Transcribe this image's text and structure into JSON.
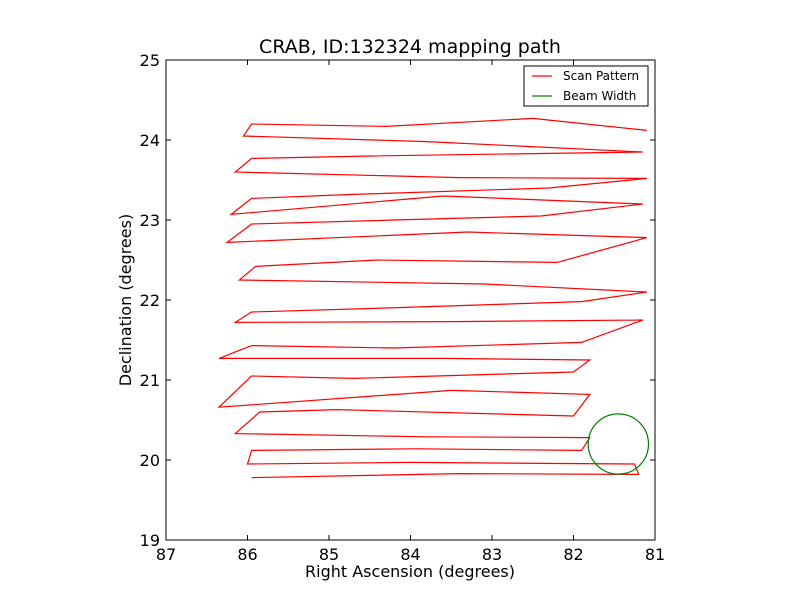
{
  "chart_data": {
    "type": "line",
    "title": "CRAB, ID:132324 mapping path",
    "xlabel": "Right Ascension (degrees)",
    "ylabel": "Declination (degrees)",
    "xlim": [
      87,
      81
    ],
    "ylim": [
      19,
      25
    ],
    "x_reversed": true,
    "xticks": [
      87,
      86,
      85,
      84,
      83,
      82,
      81
    ],
    "yticks": [
      19,
      20,
      21,
      22,
      23,
      24,
      25
    ],
    "grid": false,
    "legend": {
      "placement": "top-right",
      "entries": [
        "Scan Pattern",
        "Beam Width"
      ]
    },
    "series": [
      {
        "name": "Scan Pattern",
        "color": "#ff0000",
        "points": [
          [
            85.95,
            19.78
          ],
          [
            83.4,
            19.83
          ],
          [
            81.2,
            19.82
          ],
          [
            81.25,
            19.95
          ],
          [
            84.0,
            19.97
          ],
          [
            86.0,
            19.95
          ],
          [
            85.95,
            20.12
          ],
          [
            83.9,
            20.14
          ],
          [
            81.9,
            20.12
          ],
          [
            81.8,
            20.28
          ],
          [
            83.8,
            20.29
          ],
          [
            86.15,
            20.33
          ],
          [
            85.85,
            20.6
          ],
          [
            84.9,
            20.63
          ],
          [
            82.0,
            20.55
          ],
          [
            81.8,
            20.82
          ],
          [
            83.5,
            20.87
          ],
          [
            86.35,
            20.66
          ],
          [
            85.95,
            21.05
          ],
          [
            84.7,
            21.02
          ],
          [
            82.0,
            21.1
          ],
          [
            81.8,
            21.25
          ],
          [
            83.6,
            21.27
          ],
          [
            86.35,
            21.27
          ],
          [
            85.95,
            21.43
          ],
          [
            84.2,
            21.4
          ],
          [
            81.9,
            21.47
          ],
          [
            81.15,
            21.75
          ],
          [
            83.5,
            21.73
          ],
          [
            86.15,
            21.72
          ],
          [
            85.95,
            21.85
          ],
          [
            84.3,
            21.9
          ],
          [
            81.9,
            21.98
          ],
          [
            81.1,
            22.1
          ],
          [
            83.1,
            22.2
          ],
          [
            86.1,
            22.25
          ],
          [
            85.9,
            22.42
          ],
          [
            84.4,
            22.5
          ],
          [
            82.2,
            22.47
          ],
          [
            81.1,
            22.78
          ],
          [
            83.3,
            22.85
          ],
          [
            86.25,
            22.72
          ],
          [
            85.95,
            22.95
          ],
          [
            84.2,
            23.0
          ],
          [
            82.4,
            23.05
          ],
          [
            81.15,
            23.2
          ],
          [
            83.6,
            23.3
          ],
          [
            86.2,
            23.07
          ],
          [
            85.95,
            23.27
          ],
          [
            84.7,
            23.32
          ],
          [
            82.3,
            23.4
          ],
          [
            81.1,
            23.52
          ],
          [
            83.4,
            23.53
          ],
          [
            86.15,
            23.6
          ],
          [
            85.95,
            23.77
          ],
          [
            84.5,
            23.8
          ],
          [
            82.5,
            23.83
          ],
          [
            81.15,
            23.85
          ],
          [
            83.8,
            23.98
          ],
          [
            86.05,
            24.05
          ],
          [
            85.95,
            24.2
          ],
          [
            84.3,
            24.17
          ],
          [
            82.5,
            24.27
          ],
          [
            81.1,
            24.12
          ]
        ]
      },
      {
        "name": "Beam Width",
        "color": "#008000",
        "shape": "circle",
        "center": [
          81.45,
          20.2
        ],
        "radius_deg": 0.37
      }
    ]
  }
}
